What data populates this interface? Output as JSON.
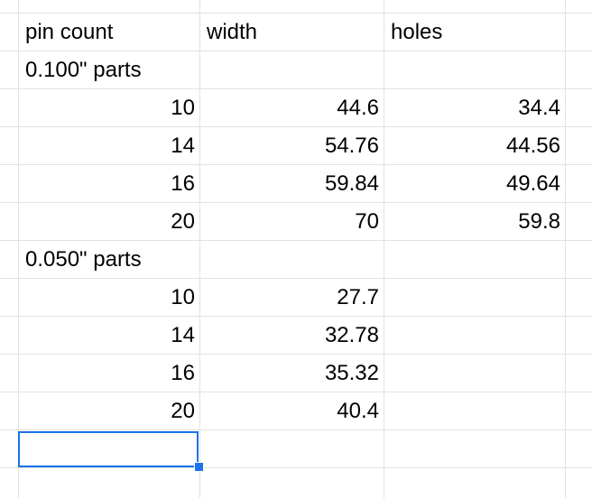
{
  "columns": {
    "a": "pin count",
    "b": "width",
    "c": "holes"
  },
  "rows": [
    {
      "a": "pin count",
      "b": "width",
      "c": "holes"
    },
    {
      "a": "0.100\" parts",
      "b": "",
      "c": ""
    },
    {
      "a": "10",
      "b": "44.6",
      "c": "34.4"
    },
    {
      "a": "14",
      "b": "54.76",
      "c": "44.56"
    },
    {
      "a": "16",
      "b": "59.84",
      "c": "49.64"
    },
    {
      "a": "20",
      "b": "70",
      "c": "59.8"
    },
    {
      "a": "0.050\" parts",
      "b": "",
      "c": ""
    },
    {
      "a": "10",
      "b": "27.7",
      "c": ""
    },
    {
      "a": "14",
      "b": "32.78",
      "c": ""
    },
    {
      "a": "16",
      "b": "35.32",
      "c": ""
    },
    {
      "a": "20",
      "b": "40.4",
      "c": ""
    },
    {
      "a": "",
      "b": "",
      "c": ""
    }
  ],
  "selection": {
    "row": 11,
    "col": "a"
  },
  "colors": {
    "grid": "#e2e2e2",
    "selection": "#1a73e8",
    "text": "#000000"
  }
}
